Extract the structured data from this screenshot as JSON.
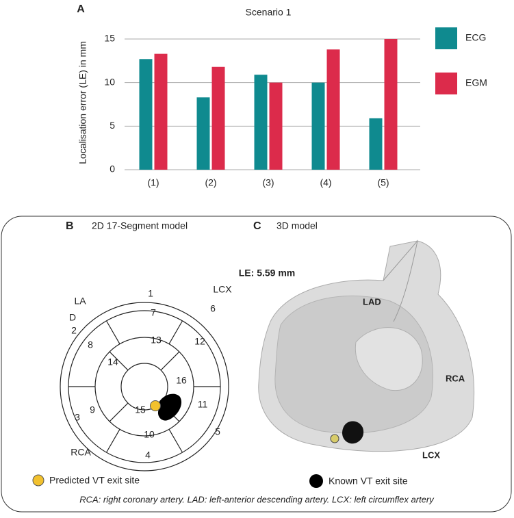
{
  "chart_data": {
    "type": "bar",
    "panel_label": "A",
    "title": "Scenario 1",
    "y_label": "Localisation error (LE) in mm",
    "categories": [
      "(1)",
      "(2)",
      "(3)",
      "(4)",
      "(5)"
    ],
    "series": [
      {
        "name": "ECG",
        "color": "#0f8a8f",
        "values": [
          12.7,
          8.3,
          10.9,
          10.0,
          5.9
        ]
      },
      {
        "name": "EGM",
        "color": "#dc2b4b",
        "values": [
          13.3,
          11.8,
          10.0,
          13.8,
          15.0
        ]
      }
    ],
    "ylim": [
      0,
      15
    ],
    "yticks": [
      0,
      5,
      10,
      15
    ],
    "grid": true,
    "legend": "right"
  },
  "figure": {
    "panel_b": {
      "label": "B",
      "title": "2D 17-Segment model",
      "segments": [
        "1",
        "2",
        "3",
        "4",
        "5",
        "6",
        "7",
        "8",
        "9",
        "10",
        "11",
        "12",
        "13",
        "14",
        "15",
        "16"
      ],
      "annotations": [
        "LA",
        "D",
        "LCX",
        "RCA"
      ]
    },
    "panel_c": {
      "label": "C",
      "title": "3D model",
      "measure": "LE: 5.59 mm",
      "annotations": [
        "LAD",
        "RCA",
        "LCX"
      ]
    },
    "legend": [
      "Predicted VT exit site",
      "Known VT exit site"
    ],
    "footnote": "RCA: right coronary artery. LAD: left-anterior descending artery. LCX: left circumflex artery"
  }
}
